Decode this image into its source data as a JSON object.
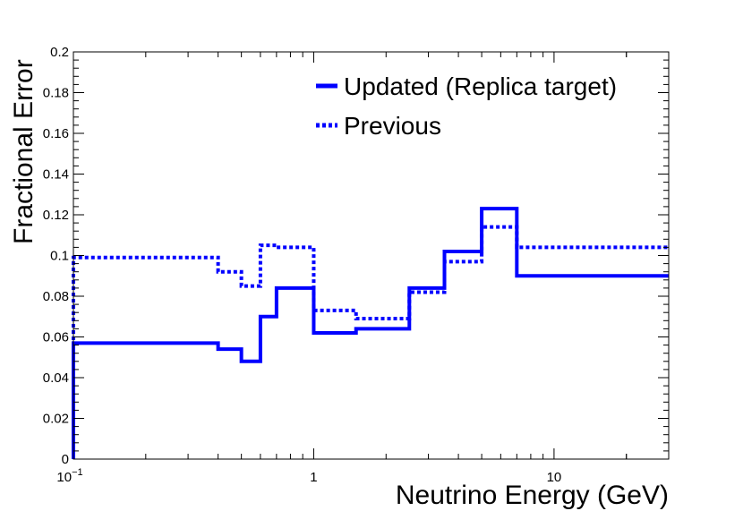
{
  "chart_data": {
    "type": "line",
    "step": true,
    "xscale": "log",
    "xlim": [
      0.1,
      30
    ],
    "ylim": [
      0,
      0.2
    ],
    "xlabel": "Neutrino Energy (GeV)",
    "ylabel": "Fractional Error",
    "x_tick_labels": [
      {
        "value": 0.1,
        "base": "10",
        "exp": "−1"
      },
      {
        "value": 1,
        "label": "1"
      },
      {
        "value": 10,
        "label": "10"
      }
    ],
    "y_ticks": [
      0,
      0.02,
      0.04,
      0.06,
      0.08,
      0.1,
      0.12,
      0.14,
      0.16,
      0.18,
      0.2
    ],
    "y_tick_labels": [
      "0",
      "0.02",
      "0.04",
      "0.06",
      "0.08",
      "0.1",
      "0.12",
      "0.14",
      "0.16",
      "0.18",
      "0.2"
    ],
    "bin_edges": [
      0.1,
      0.4,
      0.5,
      0.6,
      0.7,
      1.0,
      1.5,
      2.5,
      3.5,
      5.0,
      7.0,
      30
    ],
    "legend_position": "top-right",
    "grid": false,
    "series": [
      {
        "name": "Updated (Replica target)",
        "style": "solid",
        "color": "#0000ff",
        "values": [
          0.057,
          0.054,
          0.048,
          0.07,
          0.084,
          0.062,
          0.064,
          0.084,
          0.102,
          0.123,
          0.09
        ]
      },
      {
        "name": "Previous",
        "style": "dotted",
        "color": "#0000ff",
        "values": [
          0.099,
          0.092,
          0.085,
          0.105,
          0.104,
          0.073,
          0.069,
          0.082,
          0.097,
          0.114,
          0.104
        ]
      }
    ]
  }
}
